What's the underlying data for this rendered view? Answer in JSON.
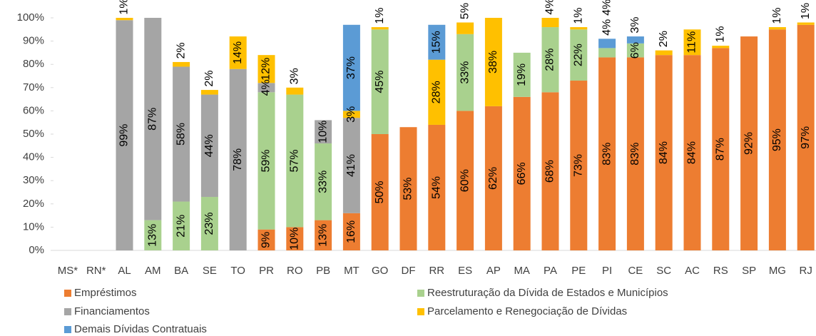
{
  "chart_data": {
    "type": "bar",
    "stacked": true,
    "categories": [
      "MS*",
      "RN*",
      "AL",
      "AM",
      "BA",
      "SE",
      "TO",
      "PR",
      "RO",
      "PB",
      "MT",
      "GO",
      "DF",
      "RR",
      "ES",
      "AP",
      "MA",
      "PA",
      "PE",
      "PI",
      "CE",
      "SC",
      "AC",
      "RS",
      "SP",
      "MG",
      "RJ"
    ],
    "series": [
      {
        "name": "Empréstimos",
        "color": "#ED7D31",
        "values": [
          null,
          null,
          null,
          null,
          null,
          null,
          null,
          9,
          10,
          13,
          16,
          50,
          53,
          54,
          60,
          62,
          66,
          68,
          73,
          83,
          83,
          84,
          84,
          87,
          92,
          95,
          97
        ],
        "value_labels": [
          null,
          null,
          null,
          null,
          null,
          null,
          null,
          "9%",
          "10%",
          "13%",
          "16%",
          "50%",
          "53%",
          "54%",
          "60%",
          "62%",
          "66%",
          "68%",
          "73%",
          "83%",
          "83%",
          "84%",
          "84%",
          "87%",
          "92%",
          "95%",
          "97%"
        ]
      },
      {
        "name": "Reestruturação da Dívida de Estados e Municípios",
        "color": "#A9D18E",
        "values": [
          null,
          null,
          null,
          13,
          21,
          23,
          null,
          59,
          57,
          33,
          null,
          45,
          null,
          null,
          33,
          null,
          19,
          28,
          22,
          4,
          6,
          null,
          null,
          null,
          null,
          null,
          null
        ],
        "value_labels": [
          null,
          null,
          null,
          "13%",
          "21%",
          "23%",
          null,
          "59%",
          "57%",
          "33%",
          null,
          "45%",
          null,
          null,
          "33%",
          null,
          "19%",
          "28%",
          "22%",
          "4%",
          "6%",
          null,
          null,
          null,
          null,
          null,
          null
        ]
      },
      {
        "name": "Financiamentos",
        "color": "#A5A5A5",
        "values": [
          null,
          null,
          99,
          87,
          58,
          44,
          78,
          4,
          null,
          10,
          41,
          null,
          null,
          null,
          null,
          null,
          null,
          null,
          null,
          null,
          null,
          null,
          null,
          null,
          null,
          null,
          null
        ],
        "value_labels": [
          null,
          null,
          "99%",
          "87%",
          "58%",
          "44%",
          "78%",
          "4%",
          null,
          "10%",
          "41%",
          null,
          null,
          null,
          null,
          null,
          null,
          null,
          null,
          null,
          null,
          null,
          null,
          null,
          null,
          null,
          null
        ]
      },
      {
        "name": "Parcelamento e Renegociação de Dívidas",
        "color": "#FFC000",
        "values": [
          null,
          null,
          1,
          null,
          2,
          2,
          14,
          12,
          3,
          null,
          3,
          1,
          null,
          28,
          5,
          38,
          null,
          4,
          1,
          null,
          null,
          2,
          11,
          1,
          null,
          1,
          1
        ],
        "value_labels": [
          null,
          null,
          "1%",
          null,
          "2%",
          "2%",
          "14%",
          "12%",
          "3%",
          null,
          "3%",
          "1%",
          null,
          "28%",
          "5%",
          "38%",
          null,
          "4%",
          "1%",
          null,
          null,
          "2%",
          "11%",
          "1%",
          null,
          "1%",
          "1%"
        ]
      },
      {
        "name": "Demais Dívidas Contratuais",
        "color": "#5B9BD5",
        "values": [
          null,
          null,
          null,
          null,
          null,
          null,
          null,
          null,
          null,
          null,
          37,
          null,
          null,
          15,
          null,
          null,
          null,
          null,
          null,
          4,
          3,
          null,
          null,
          null,
          null,
          null,
          null
        ],
        "value_labels": [
          null,
          null,
          null,
          null,
          null,
          null,
          null,
          null,
          null,
          null,
          "37%",
          null,
          null,
          "15%",
          null,
          null,
          null,
          null,
          null,
          "4%",
          "3%",
          null,
          null,
          null,
          null,
          null,
          null
        ]
      }
    ],
    "ylim": [
      0,
      100
    ],
    "yticks": [
      {
        "value": 0,
        "label": "0%"
      },
      {
        "value": 10,
        "label": "10%"
      },
      {
        "value": 20,
        "label": "20%"
      },
      {
        "value": 30,
        "label": "30%"
      },
      {
        "value": 40,
        "label": "40%"
      },
      {
        "value": 50,
        "label": "50%"
      },
      {
        "value": 60,
        "label": "60%"
      },
      {
        "value": 70,
        "label": "70%"
      },
      {
        "value": 80,
        "label": "80%"
      },
      {
        "value": 90,
        "label": "90%"
      },
      {
        "value": 100,
        "label": "100%"
      }
    ],
    "grid": false,
    "legend": "bottom"
  }
}
